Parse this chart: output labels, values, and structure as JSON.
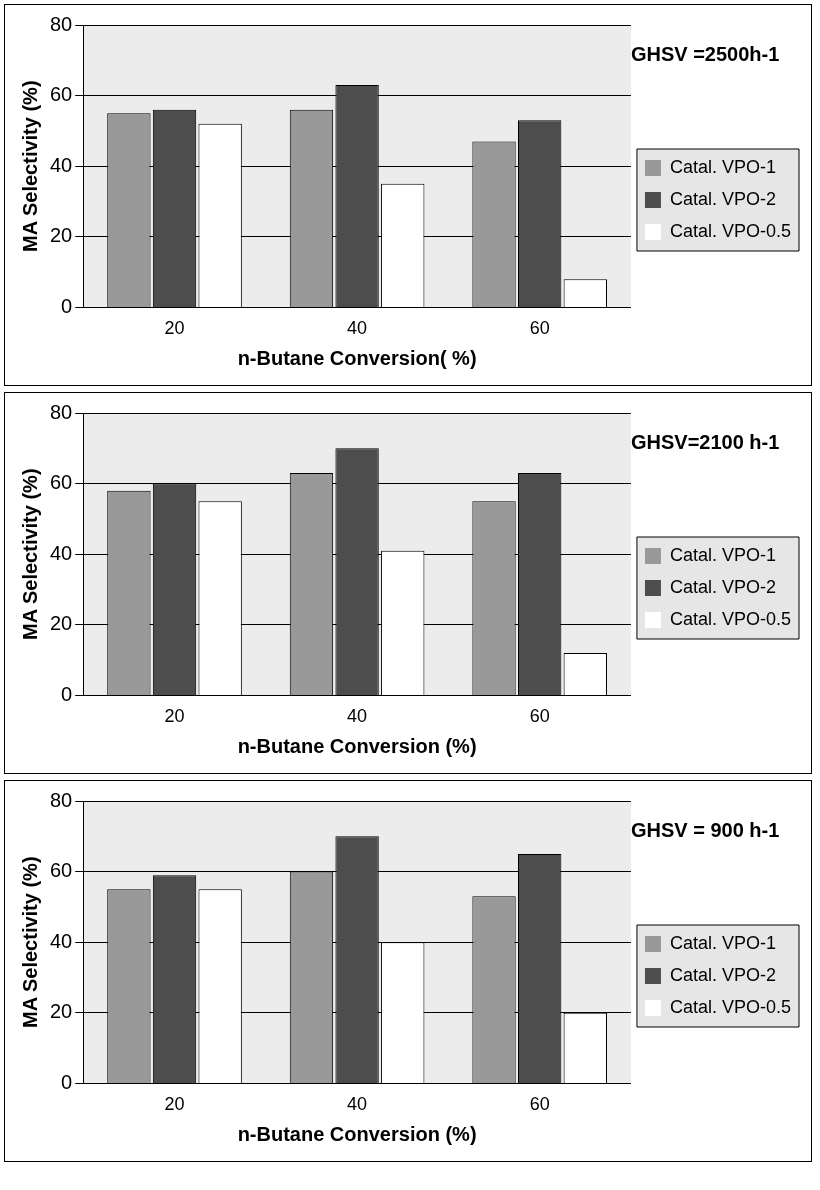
{
  "chart_data": [
    {
      "type": "bar",
      "categories": [
        "20",
        "40",
        "60"
      ],
      "xlabel": "n-Butane Conversion( %)",
      "ylabel": "MA Selectivity (%)",
      "ylim": [
        0,
        80
      ],
      "yticks": [
        0,
        20,
        40,
        60,
        80
      ],
      "grid": "y",
      "legend": "right",
      "annotations": [
        "GHSV =2500h-1"
      ],
      "series": [
        {
          "name": "Catal. VPO-1",
          "color": "#999999",
          "values": [
            55,
            56,
            47
          ]
        },
        {
          "name": "Catal. VPO-2",
          "color": "#4d4d4d",
          "values": [
            56,
            63,
            53
          ]
        },
        {
          "name": "Catal. VPO-0.5",
          "color": "#ffffff",
          "values": [
            52,
            35,
            8
          ]
        }
      ]
    },
    {
      "type": "bar",
      "categories": [
        "20",
        "40",
        "60"
      ],
      "xlabel": "n-Butane Conversion (%)",
      "ylabel": "MA Selectivity (%)",
      "ylim": [
        0,
        80
      ],
      "yticks": [
        0,
        20,
        40,
        60,
        80
      ],
      "grid": "y",
      "legend": "right",
      "annotations": [
        "GHSV=2100 h-1"
      ],
      "series": [
        {
          "name": "Catal. VPO-1",
          "color": "#999999",
          "values": [
            58,
            63,
            55
          ]
        },
        {
          "name": "Catal. VPO-2",
          "color": "#4d4d4d",
          "values": [
            60,
            70,
            63
          ]
        },
        {
          "name": "Catal. VPO-0.5",
          "color": "#ffffff",
          "values": [
            55,
            41,
            12
          ]
        }
      ]
    },
    {
      "type": "bar",
      "categories": [
        "20",
        "40",
        "60"
      ],
      "xlabel": "n-Butane Conversion (%)",
      "ylabel": "MA Selectivity (%)",
      "ylim": [
        0,
        80
      ],
      "yticks": [
        0,
        20,
        40,
        60,
        80
      ],
      "grid": "y",
      "legend": "right",
      "annotations": [
        "GHSV = 900 h-1"
      ],
      "series": [
        {
          "name": "Catal. VPO-1",
          "color": "#999999",
          "values": [
            55,
            60,
            53
          ]
        },
        {
          "name": "Catal. VPO-2",
          "color": "#4d4d4d",
          "values": [
            59,
            70,
            65
          ]
        },
        {
          "name": "Catal. VPO-0.5",
          "color": "#ffffff",
          "values": [
            55,
            40,
            20
          ]
        }
      ]
    }
  ]
}
